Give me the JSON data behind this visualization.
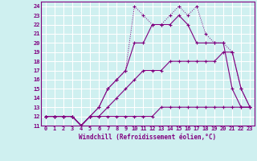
{
  "xlabel": "Windchill (Refroidissement éolien,°C)",
  "bg_color": "#cff0f0",
  "grid_color": "#ffffff",
  "line_color": "#800080",
  "xlim": [
    -0.5,
    23.5
  ],
  "ylim": [
    11,
    24.5
  ],
  "yticks": [
    11,
    12,
    13,
    14,
    15,
    16,
    17,
    18,
    19,
    20,
    21,
    22,
    23,
    24
  ],
  "xticks": [
    0,
    1,
    2,
    3,
    4,
    5,
    6,
    7,
    8,
    9,
    10,
    11,
    12,
    13,
    14,
    15,
    16,
    17,
    18,
    19,
    20,
    21,
    22,
    23
  ],
  "series1_x": [
    0,
    1,
    2,
    3,
    4,
    5,
    6,
    7,
    8,
    9,
    10,
    11,
    12,
    13,
    14,
    15,
    16,
    17,
    18,
    19,
    20,
    21,
    22,
    23
  ],
  "series1_y": [
    12,
    12,
    12,
    12,
    11,
    12,
    12,
    12,
    12,
    12,
    12,
    12,
    12,
    13,
    13,
    13,
    13,
    13,
    13,
    13,
    13,
    13,
    13,
    13
  ],
  "series2_x": [
    0,
    1,
    2,
    3,
    4,
    5,
    6,
    7,
    8,
    9,
    10,
    11,
    12,
    13,
    14,
    15,
    16,
    17,
    18,
    19,
    20,
    21,
    22,
    23
  ],
  "series2_y": [
    12,
    12,
    12,
    12,
    11,
    12,
    12,
    13,
    14,
    15,
    16,
    17,
    17,
    17,
    18,
    18,
    18,
    18,
    18,
    18,
    19,
    19,
    15,
    13
  ],
  "series3_x": [
    0,
    1,
    2,
    3,
    4,
    5,
    6,
    7,
    8,
    9,
    10,
    11,
    12,
    13,
    14,
    15,
    16,
    17,
    18,
    19,
    20,
    21,
    22,
    23
  ],
  "series3_y": [
    12,
    12,
    12,
    12,
    11,
    12,
    13,
    15,
    16,
    17,
    20,
    20,
    22,
    22,
    22,
    23,
    22,
    20,
    20,
    20,
    20,
    15,
    13,
    13
  ],
  "series4_x": [
    0,
    1,
    2,
    3,
    4,
    5,
    6,
    7,
    8,
    9,
    10,
    11,
    12,
    13,
    14,
    15,
    16,
    17,
    18,
    19,
    20,
    21,
    22,
    23
  ],
  "series4_y": [
    12,
    12,
    12,
    12,
    11,
    12,
    13,
    15,
    16,
    17,
    24,
    23,
    22,
    22,
    23,
    24,
    23,
    24,
    21,
    20,
    20,
    19,
    15,
    13
  ]
}
